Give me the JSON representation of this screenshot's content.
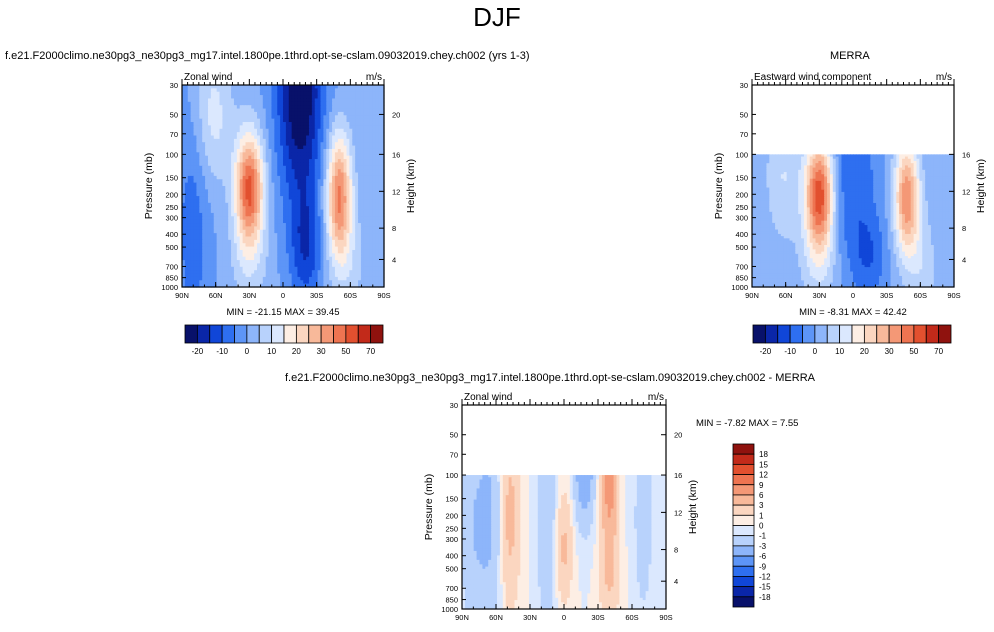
{
  "page_title": "DJF",
  "model_title": "f.e21.F2000climo.ne30pg3_ne30pg3_mg17.intel.1800pe.1thrd.opt-se-cslam.09032019.chey.ch002 (yrs 1-3)",
  "obs_title": "MERRA",
  "diff_title": "f.e21.F2000climo.ne30pg3_ne30pg3_mg17.intel.1800pe.1thrd.opt-se-cslam.09032019.chey.ch002 - MERRA",
  "colors": {
    "diverging_21": [
      "#08116a",
      "#0a26a8",
      "#1046d8",
      "#2e6ff0",
      "#5d95f7",
      "#8db5fa",
      "#b8d2fc",
      "#dbe8fe",
      "#fdeee4",
      "#fbd6c0",
      "#f8b99a",
      "#f49876",
      "#ee7451",
      "#e2502f",
      "#c22a1a",
      "#8f120e"
    ],
    "diverging_18": [
      "#08116a",
      "#0a26a8",
      "#1046d8",
      "#2e6ff0",
      "#5d95f7",
      "#8db5fa",
      "#b8d2fc",
      "#dbe8fe",
      "#fdeee4",
      "#fbd6c0",
      "#f8b99a",
      "#f49876",
      "#ee7451",
      "#e2502f",
      "#c22a1a",
      "#8f120e"
    ]
  },
  "chart_data": [
    {
      "type": "heatmap",
      "panel": "model",
      "left_label": "Zonal wind",
      "right_label": "m/s",
      "ylabel": "Pressure (mb)",
      "ylabel_right": "Height (km)",
      "y_ticks": [
        "30",
        "50",
        "70",
        "100",
        "150",
        "200",
        "250",
        "300",
        "400",
        "500",
        "700",
        "850",
        "1000"
      ],
      "y_right_ticks": [
        "20",
        "16",
        "12",
        "8",
        "4"
      ],
      "x_ticks": [
        "90N",
        "60N",
        "30N",
        "0",
        "30S",
        "60S",
        "90S"
      ],
      "stats": "MIN = -21.15  MAX =  39.45",
      "colorbar_labels": [
        "-20",
        "-10",
        "0",
        "10",
        "20",
        "30",
        "50",
        "70"
      ],
      "jets": [
        {
          "lat": 30,
          "pressure": 200,
          "max": 39.45
        },
        {
          "lat": -50,
          "pressure": 250,
          "max": 33
        }
      ],
      "min": -21.15,
      "max": 39.45
    },
    {
      "type": "heatmap",
      "panel": "obs",
      "left_label": "Eastward wind component",
      "right_label": "m/s",
      "ylabel": "Pressure (mb)",
      "ylabel_right": "Height (km)",
      "y_ticks": [
        "30",
        "50",
        "70",
        "100",
        "150",
        "200",
        "250",
        "300",
        "400",
        "500",
        "700",
        "850",
        "1000"
      ],
      "y_right_ticks": [
        "16",
        "12",
        "8",
        "4"
      ],
      "x_ticks": [
        "90N",
        "60N",
        "30N",
        "0",
        "30S",
        "60S",
        "90S"
      ],
      "stats": "MIN =  -8.31  MAX =  42.42",
      "colorbar_labels": [
        "-20",
        "-10",
        "0",
        "10",
        "20",
        "30",
        "50",
        "70"
      ],
      "data_top_pressure": 100,
      "min": -8.31,
      "max": 42.42
    },
    {
      "type": "heatmap",
      "panel": "difference",
      "left_label": "Zonal wind",
      "right_label": "m/s",
      "ylabel": "Pressure (mb)",
      "ylabel_right": "Height (km)",
      "y_ticks": [
        "30",
        "50",
        "70",
        "100",
        "150",
        "200",
        "250",
        "300",
        "400",
        "500",
        "700",
        "850",
        "1000"
      ],
      "y_right_ticks": [
        "20",
        "16",
        "12",
        "8",
        "4"
      ],
      "x_ticks": [
        "90N",
        "60N",
        "30N",
        "0",
        "30S",
        "60S",
        "90S"
      ],
      "stats": "MIN =  -7.82  MAX =   7.55",
      "colorbar_labels": [
        "18",
        "15",
        "12",
        "9",
        "6",
        "3",
        "1",
        "0",
        "-1",
        "-3",
        "-6",
        "-9",
        "-12",
        "-15",
        "-18"
      ],
      "data_top_pressure": 100,
      "min": -7.82,
      "max": 7.55
    }
  ]
}
